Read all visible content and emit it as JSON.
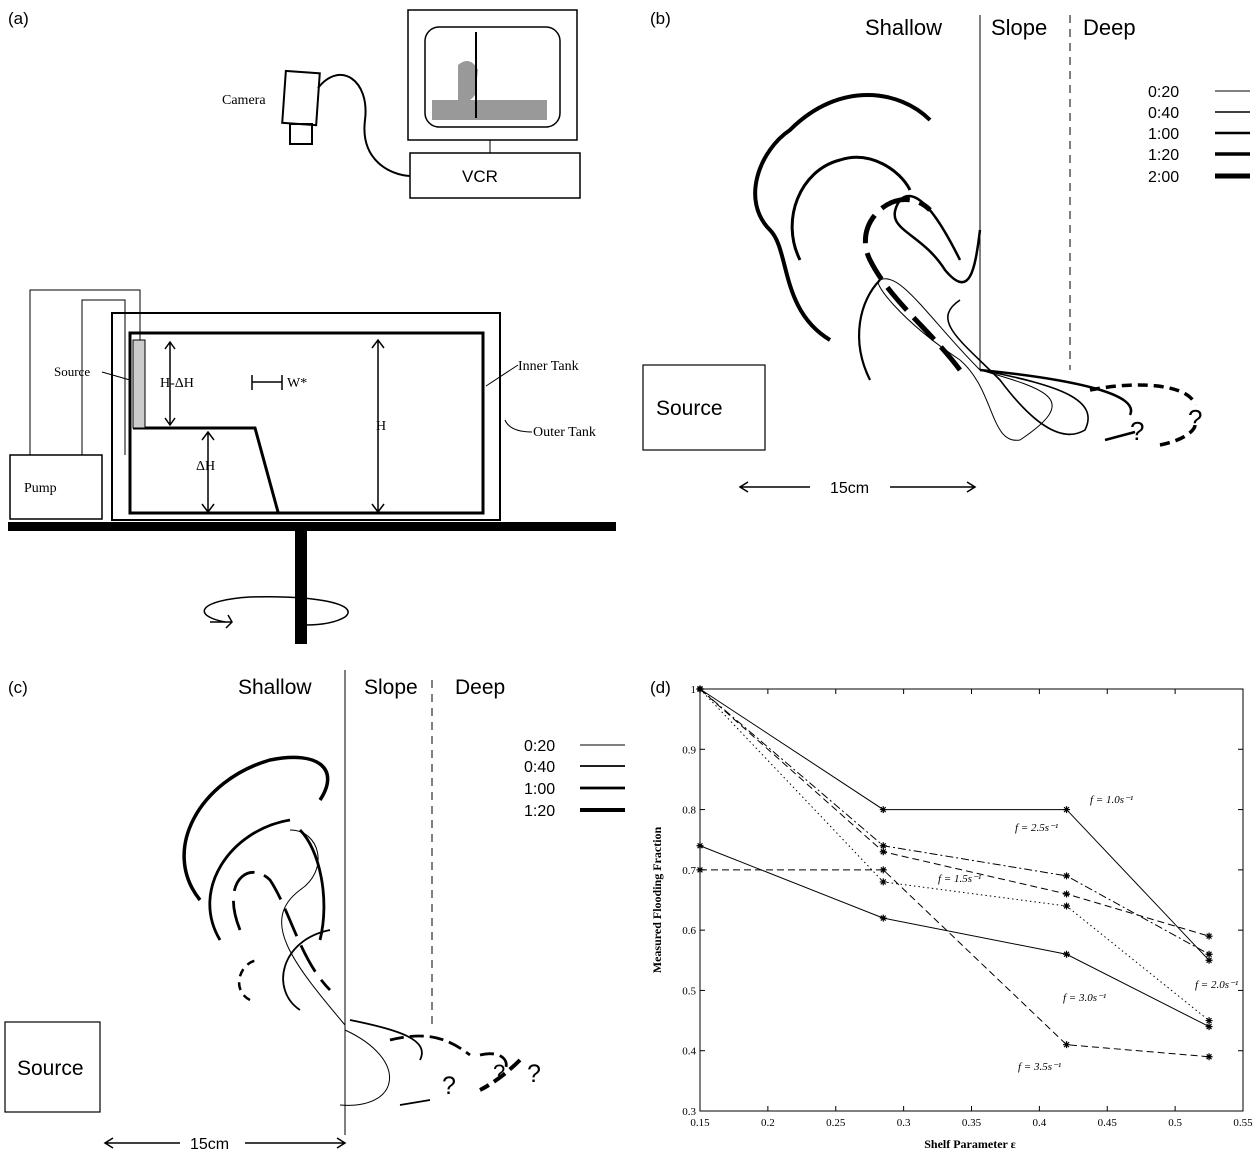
{
  "panels": {
    "a": {
      "label": "(a)",
      "camera": "Camera",
      "vcr": "VCR",
      "source": "Source",
      "h_minus_dh": "H-ΔH",
      "w_star": "W*",
      "inner_tank": "Inner Tank",
      "outer_tank": "Outer Tank",
      "h": "H",
      "dh": "ΔH",
      "pump": "Pump"
    },
    "b": {
      "label": "(b)",
      "regions": [
        "Shallow",
        "Slope",
        "Deep"
      ],
      "legend": [
        "0:20",
        "0:40",
        "1:00",
        "1:20",
        "2:00"
      ],
      "source": "Source",
      "scale": "15cm",
      "unknown": [
        "?",
        "?"
      ]
    },
    "c": {
      "label": "(c)",
      "regions": [
        "Shallow",
        "Slope",
        "Deep"
      ],
      "legend": [
        "0:20",
        "0:40",
        "1:00",
        "1:20"
      ],
      "source": "Source",
      "scale": "15cm",
      "unknown": [
        "?",
        "?",
        "?"
      ]
    }
  },
  "chart_data": {
    "type": "line",
    "panel_label": "(d)",
    "x_label": "Shelf Parameter ε",
    "y_label": "Measured Flooding Fraction",
    "x": [
      0.15,
      0.285,
      0.42,
      0.525
    ],
    "xlim": [
      0.15,
      0.55
    ],
    "xticks": [
      0.15,
      0.2,
      0.25,
      0.3,
      0.35,
      0.4,
      0.45,
      0.5,
      0.55
    ],
    "ylim": [
      0.3,
      1
    ],
    "yticks": [
      0.3,
      0.4,
      0.5,
      0.6,
      0.7,
      0.8,
      0.9,
      1
    ],
    "series": [
      {
        "name": "f = 1.0s⁻¹",
        "color": "#000000",
        "dash": "solid",
        "values": [
          1,
          0.8,
          0.8,
          0.55
        ]
      },
      {
        "name": "f = 2.5s⁻¹",
        "color": "#000000",
        "dash": "dashdot",
        "values": [
          1,
          0.74,
          0.69,
          0.56
        ]
      },
      {
        "name": "f = 1.5s⁻¹",
        "color": "#000000",
        "dash": "dashed",
        "values": [
          1,
          0.73,
          0.66,
          0.59
        ]
      },
      {
        "name": "f = 2.0s⁻¹",
        "color": "#000000",
        "dash": "dotted",
        "values": [
          1,
          0.68,
          0.64,
          0.45
        ]
      },
      {
        "name": "f = 3.0s⁻¹",
        "color": "#000000",
        "dash": "solid",
        "values": [
          0.74,
          0.62,
          0.56,
          0.44
        ]
      },
      {
        "name": "f = 3.5s⁻¹",
        "color": "#000000",
        "dash": "dashed",
        "values": [
          0.7,
          0.7,
          0.41,
          0.39
        ]
      }
    ]
  }
}
